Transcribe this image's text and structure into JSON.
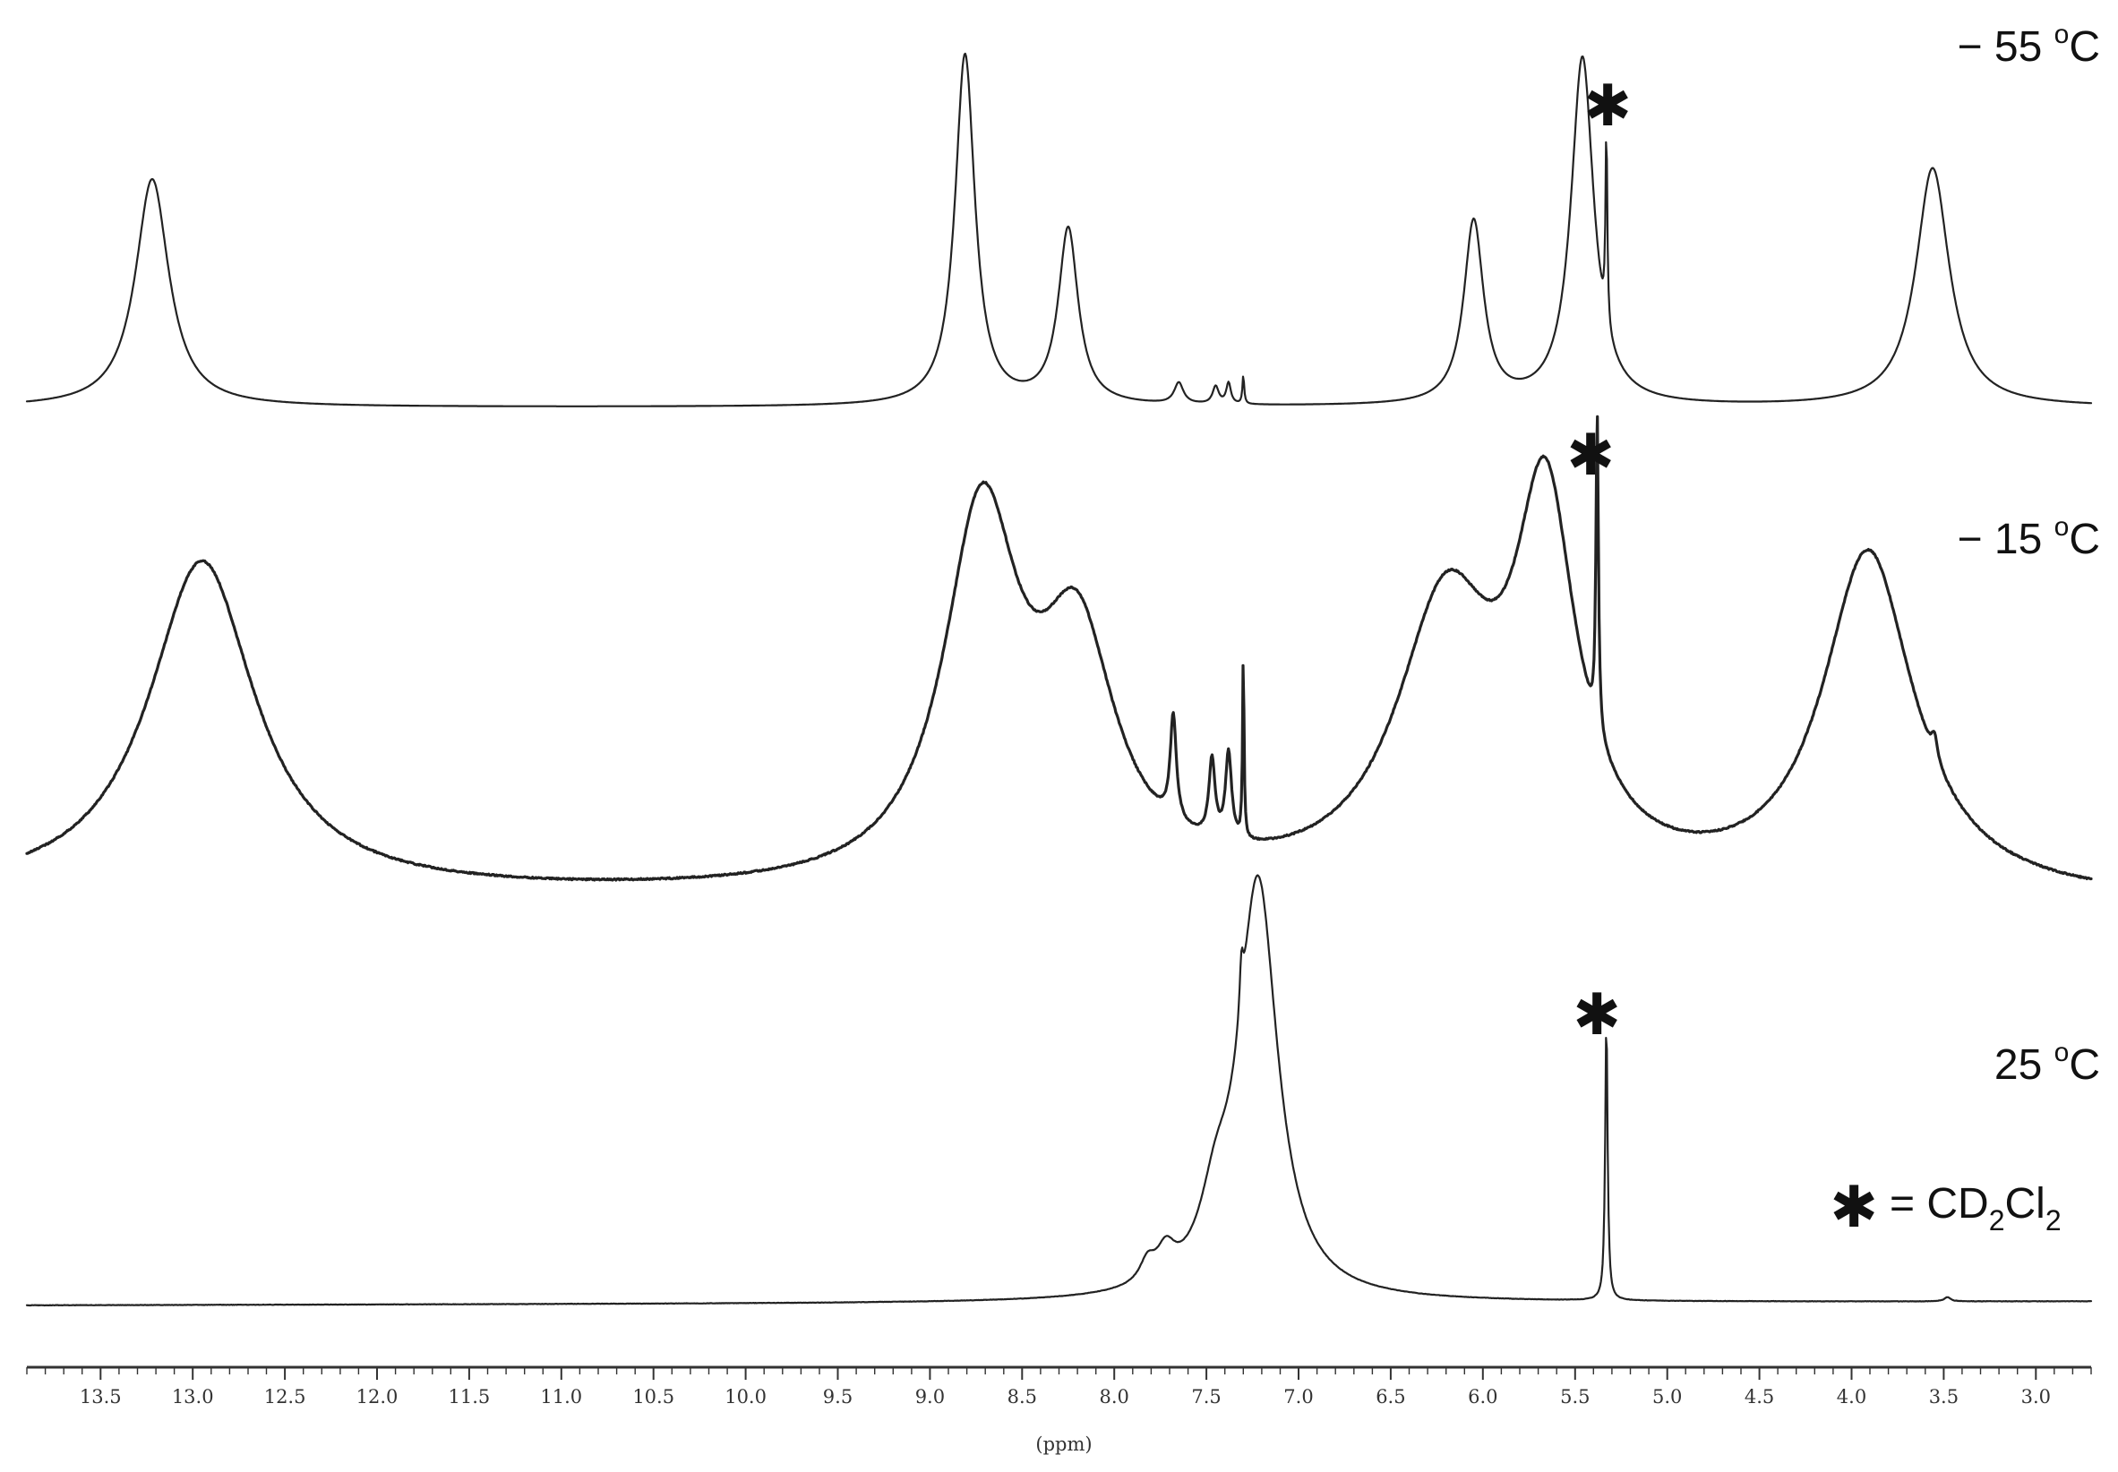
{
  "chart_data": {
    "type": "line",
    "title": "",
    "xlabel": "(ppm)",
    "ylabel": "",
    "x_axis_reversed": true,
    "xlim": [
      13.9,
      2.7
    ],
    "ticks_major": [
      13.5,
      13.0,
      12.5,
      12.0,
      11.5,
      11.0,
      10.5,
      10.0,
      9.5,
      9.0,
      8.5,
      8.0,
      7.5,
      7.0,
      6.5,
      6.0,
      5.5,
      5.0,
      4.5,
      4.0,
      3.5,
      3.0
    ],
    "tick_labels": [
      "13.5",
      "13.0",
      "12.5",
      "12.0",
      "11.5",
      "11.0",
      "10.5",
      "10.0",
      "9.5",
      "9.0",
      "8.5",
      "8.0",
      "7.5",
      "7.0",
      "6.5",
      "6.0",
      "5.5",
      "5.0",
      "4.5",
      "4.0",
      "3.5",
      "3.0"
    ],
    "minor_tick_step": 0.1,
    "grid": false,
    "legend": {
      "symbol": "✱",
      "label_parts": [
        "= CD",
        "2",
        "Cl",
        "2"
      ],
      "placement": "right"
    },
    "series": [
      {
        "temperature": "55",
        "label_parts": [
          "− 55 ",
          "o",
          "C"
        ],
        "peaks": [
          {
            "ppm": 13.22,
            "height": 0.65,
            "width": 0.11
          },
          {
            "ppm": 8.81,
            "height": 1.0,
            "width": 0.065
          },
          {
            "ppm": 8.25,
            "height": 0.5,
            "width": 0.065
          },
          {
            "ppm": 7.65,
            "height": 0.06,
            "width": 0.03
          },
          {
            "ppm": 7.45,
            "height": 0.05,
            "width": 0.02
          },
          {
            "ppm": 7.38,
            "height": 0.06,
            "width": 0.015
          },
          {
            "ppm": 7.3,
            "height": 0.08,
            "width": 0.006
          },
          {
            "ppm": 6.05,
            "height": 0.52,
            "width": 0.065
          },
          {
            "ppm": 5.46,
            "height": 0.99,
            "width": 0.075
          },
          {
            "ppm": 5.33,
            "height": 0.55,
            "width": 0.006
          },
          {
            "ppm": 3.56,
            "height": 0.68,
            "width": 0.11
          }
        ],
        "solvent_peak_ppm": 5.33
      },
      {
        "temperature": "15",
        "label_parts": [
          "− 15 ",
          "o",
          "C"
        ],
        "peaks": [
          {
            "ppm": 12.95,
            "height": 0.73,
            "width": 0.35
          },
          {
            "ppm": 8.72,
            "height": 0.8,
            "width": 0.25
          },
          {
            "ppm": 8.2,
            "height": 0.5,
            "width": 0.25
          },
          {
            "ppm": 7.68,
            "height": 0.23,
            "width": 0.02
          },
          {
            "ppm": 7.47,
            "height": 0.17,
            "width": 0.02
          },
          {
            "ppm": 7.38,
            "height": 0.19,
            "width": 0.02
          },
          {
            "ppm": 7.3,
            "height": 0.4,
            "width": 0.005
          },
          {
            "ppm": 6.2,
            "height": 0.6,
            "width": 0.33
          },
          {
            "ppm": 5.66,
            "height": 0.78,
            "width": 0.2
          },
          {
            "ppm": 5.38,
            "height": 0.7,
            "width": 0.008
          },
          {
            "ppm": 3.91,
            "height": 0.75,
            "width": 0.3
          },
          {
            "ppm": 3.55,
            "height": 0.05,
            "width": 0.02
          }
        ],
        "solvent_peak_ppm": 5.38
      },
      {
        "temperature": "25",
        "label_parts": [
          "25 ",
          "o",
          "C"
        ],
        "peaks": [
          {
            "ppm": 7.22,
            "height": 1.0,
            "width": 0.13
          },
          {
            "ppm": 7.45,
            "height": 0.15,
            "width": 0.1
          },
          {
            "ppm": 7.72,
            "height": 0.07,
            "width": 0.06
          },
          {
            "ppm": 7.82,
            "height": 0.05,
            "width": 0.05
          },
          {
            "ppm": 7.31,
            "height": 0.12,
            "width": 0.012
          },
          {
            "ppm": 5.33,
            "height": 0.67,
            "width": 0.008
          },
          {
            "ppm": 3.48,
            "height": 0.01,
            "width": 0.02
          }
        ],
        "solvent_peak_ppm": 5.33
      }
    ]
  }
}
